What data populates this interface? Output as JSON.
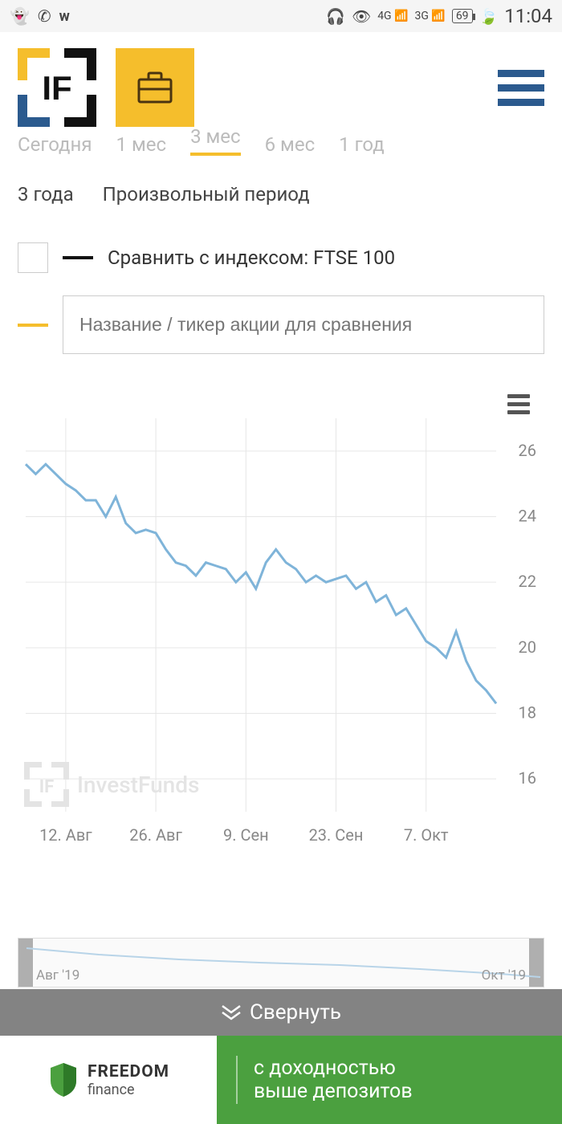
{
  "status_bar": {
    "time": "11:04",
    "battery": "69",
    "signal_labels": [
      "4G",
      "3G"
    ]
  },
  "periods": {
    "row1_faded": [
      "Сегодня",
      "1 мес",
      "3 мес",
      "6 мес",
      "1 год"
    ],
    "row2": [
      "3 года",
      "Произвольный период"
    ]
  },
  "compare": {
    "label": "Сравнить с индексом: FTSE 100",
    "swatch_color": "#111111",
    "input_placeholder": "Название / тикер акции для сравнения",
    "input_swatch_color": "#f5be2c"
  },
  "chart": {
    "type": "line",
    "line_color": "#7fb4d9",
    "line_width": 3,
    "grid_color": "#e6e6e6",
    "background_color": "#ffffff",
    "y_ticks": [
      16,
      18,
      20,
      22,
      24,
      26
    ],
    "ylim": [
      15,
      27
    ],
    "x_ticks": [
      "12. Авг",
      "26. Авг",
      "9. Сен",
      "23. Сен",
      "7. Окт"
    ],
    "points": [
      [
        0,
        25.6
      ],
      [
        2,
        25.3
      ],
      [
        4,
        25.6
      ],
      [
        6,
        25.3
      ],
      [
        8,
        25.0
      ],
      [
        10,
        24.8
      ],
      [
        12,
        24.5
      ],
      [
        14,
        24.5
      ],
      [
        16,
        24.0
      ],
      [
        18,
        24.6
      ],
      [
        20,
        23.8
      ],
      [
        22,
        23.5
      ],
      [
        24,
        23.6
      ],
      [
        26,
        23.5
      ],
      [
        28,
        23.0
      ],
      [
        30,
        22.6
      ],
      [
        32,
        22.5
      ],
      [
        34,
        22.2
      ],
      [
        36,
        22.6
      ],
      [
        38,
        22.5
      ],
      [
        40,
        22.4
      ],
      [
        42,
        22.0
      ],
      [
        44,
        22.3
      ],
      [
        46,
        21.8
      ],
      [
        48,
        22.6
      ],
      [
        50,
        23.0
      ],
      [
        52,
        22.6
      ],
      [
        54,
        22.4
      ],
      [
        56,
        22.0
      ],
      [
        58,
        22.2
      ],
      [
        60,
        22.0
      ],
      [
        62,
        22.1
      ],
      [
        64,
        22.2
      ],
      [
        66,
        21.8
      ],
      [
        68,
        22.0
      ],
      [
        70,
        21.4
      ],
      [
        72,
        21.6
      ],
      [
        74,
        21.0
      ],
      [
        76,
        21.2
      ],
      [
        78,
        20.7
      ],
      [
        80,
        20.2
      ],
      [
        82,
        20.0
      ],
      [
        84,
        19.7
      ],
      [
        86,
        20.5
      ],
      [
        88,
        19.6
      ],
      [
        90,
        19.0
      ],
      [
        92,
        18.7
      ],
      [
        94,
        18.3
      ]
    ],
    "watermark_text": "InvestFunds",
    "axis_label_fontsize": 20,
    "axis_label_color": "#888888"
  },
  "navigator": {
    "labels": [
      "Авг '19",
      "Окт '19"
    ]
  },
  "collapse": {
    "label": "Свернуть"
  },
  "ad": {
    "brand_top": "FREEDOM",
    "brand_bottom": "finance",
    "text_line1": "с доходностью",
    "text_line2": "выше депозитов",
    "bg_color": "#4ba03f"
  }
}
